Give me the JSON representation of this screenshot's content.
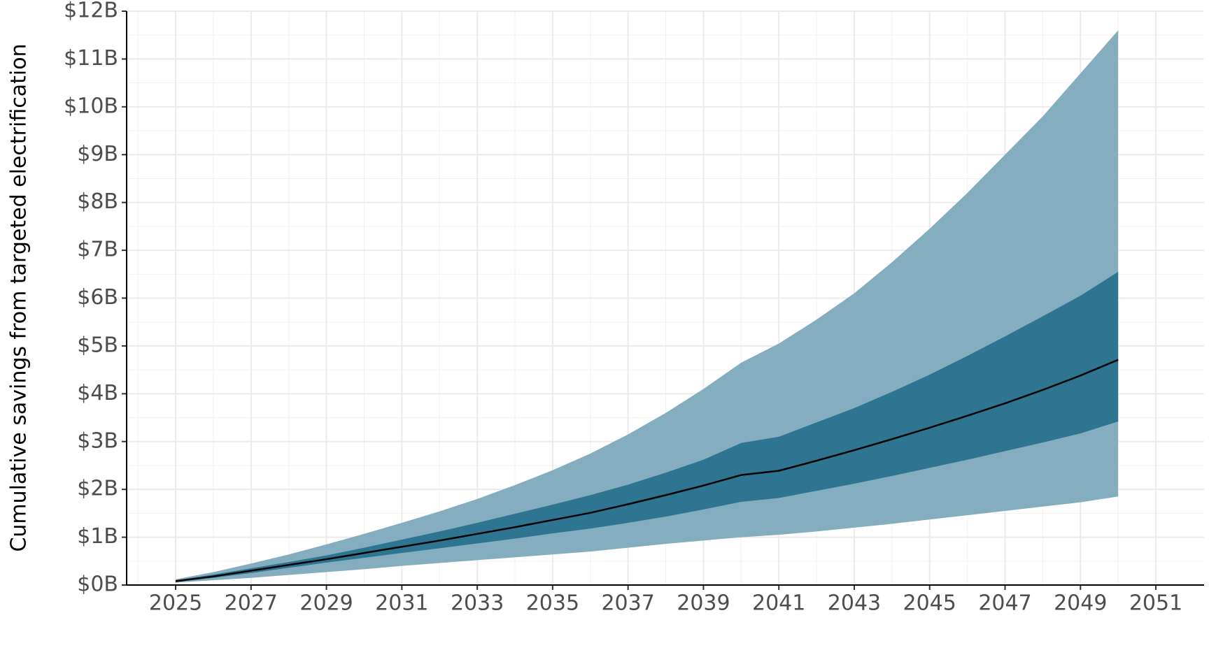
{
  "chart_data": {
    "type": "line-band",
    "y_label": "Cumulative savings from targeted electrification",
    "x": [
      2025,
      2026,
      2027,
      2028,
      2029,
      2030,
      2031,
      2032,
      2033,
      2034,
      2035,
      2036,
      2037,
      2038,
      2039,
      2040,
      2041,
      2042,
      2043,
      2044,
      2045,
      2046,
      2047,
      2048,
      2049,
      2050
    ],
    "bands": [
      {
        "color": "#85adc0",
        "lower": [
          0.05,
          0.1,
          0.15,
          0.21,
          0.27,
          0.33,
          0.4,
          0.46,
          0.52,
          0.58,
          0.64,
          0.7,
          0.78,
          0.86,
          0.93,
          1.0,
          1.05,
          1.12,
          1.2,
          1.28,
          1.37,
          1.46,
          1.55,
          1.64,
          1.73,
          1.85
        ],
        "upper": [
          0.12,
          0.27,
          0.45,
          0.64,
          0.85,
          1.07,
          1.3,
          1.54,
          1.8,
          2.09,
          2.4,
          2.75,
          3.15,
          3.6,
          4.1,
          4.65,
          5.05,
          5.55,
          6.1,
          6.75,
          7.45,
          8.2,
          9.0,
          9.8,
          10.7,
          11.6
        ]
      },
      {
        "color": "#2d7591",
        "lower": [
          0.06,
          0.15,
          0.25,
          0.36,
          0.47,
          0.57,
          0.67,
          0.77,
          0.87,
          0.97,
          1.08,
          1.18,
          1.3,
          1.43,
          1.58,
          1.74,
          1.82,
          1.97,
          2.12,
          2.28,
          2.45,
          2.62,
          2.8,
          2.98,
          3.17,
          3.42
        ],
        "upper": [
          0.1,
          0.22,
          0.35,
          0.48,
          0.62,
          0.78,
          0.95,
          1.12,
          1.3,
          1.49,
          1.68,
          1.88,
          2.1,
          2.35,
          2.62,
          2.97,
          3.1,
          3.4,
          3.7,
          4.04,
          4.4,
          4.79,
          5.2,
          5.62,
          6.05,
          6.55
        ]
      }
    ],
    "line": {
      "color": "#000000",
      "values": [
        0.08,
        0.18,
        0.3,
        0.42,
        0.54,
        0.67,
        0.8,
        0.93,
        1.07,
        1.21,
        1.36,
        1.51,
        1.69,
        1.88,
        2.08,
        2.3,
        2.39,
        2.6,
        2.82,
        3.05,
        3.29,
        3.54,
        3.8,
        4.08,
        4.38,
        4.71
      ]
    },
    "xlim": [
      2023.7,
      2052.28
    ],
    "xticks": [
      2025,
      2027,
      2029,
      2031,
      2033,
      2035,
      2037,
      2039,
      2041,
      2043,
      2045,
      2047,
      2049,
      2051
    ],
    "ylim": [
      0,
      12
    ],
    "yticks": [
      {
        "value": 0,
        "label": "$0B"
      },
      {
        "value": 1,
        "label": "$1B"
      },
      {
        "value": 2,
        "label": "$2B"
      },
      {
        "value": 3,
        "label": "$3B"
      },
      {
        "value": 4,
        "label": "$4B"
      },
      {
        "value": 5,
        "label": "$5B"
      },
      {
        "value": 6,
        "label": "$6B"
      },
      {
        "value": 7,
        "label": "$7B"
      },
      {
        "value": 8,
        "label": "$8B"
      },
      {
        "value": 9,
        "label": "$9B"
      },
      {
        "value": 10,
        "label": "$10B"
      },
      {
        "value": 11,
        "label": "$11B"
      },
      {
        "value": 12,
        "label": "$12B"
      }
    ],
    "grid": true
  }
}
